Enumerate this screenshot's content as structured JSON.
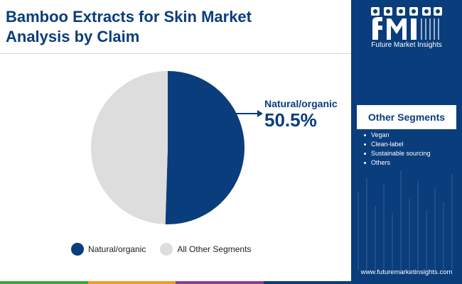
{
  "title_lines": [
    "Bamboo Extracts for Skin Market",
    "Analysis by Claim"
  ],
  "logo": {
    "caption": "Future Market Insights",
    "icon": "fmi-logo"
  },
  "side_panel": {
    "segments_title": "Other Segments",
    "segments": [
      "Vegan",
      "Clean-label",
      "Sustainable sourcing",
      "Others"
    ],
    "website": "www.futuremarketinsights.com"
  },
  "callout": {
    "label": "Natural/organic",
    "value": "50.5%"
  },
  "colors": {
    "primary": "#0a3d7c",
    "secondary": "#dddddd",
    "bar_segments": [
      "#3aa935",
      "#f29b1f",
      "#8a3d96",
      "#0a3d7c"
    ]
  },
  "chart_data": {
    "type": "pie",
    "slices": [
      {
        "label": "Natural/organic",
        "value": 50.5,
        "color": "#0a3d7c"
      },
      {
        "label": "All Other Segments",
        "value": 49.5,
        "color": "#dddddd"
      }
    ],
    "legend_position": "bottom"
  }
}
